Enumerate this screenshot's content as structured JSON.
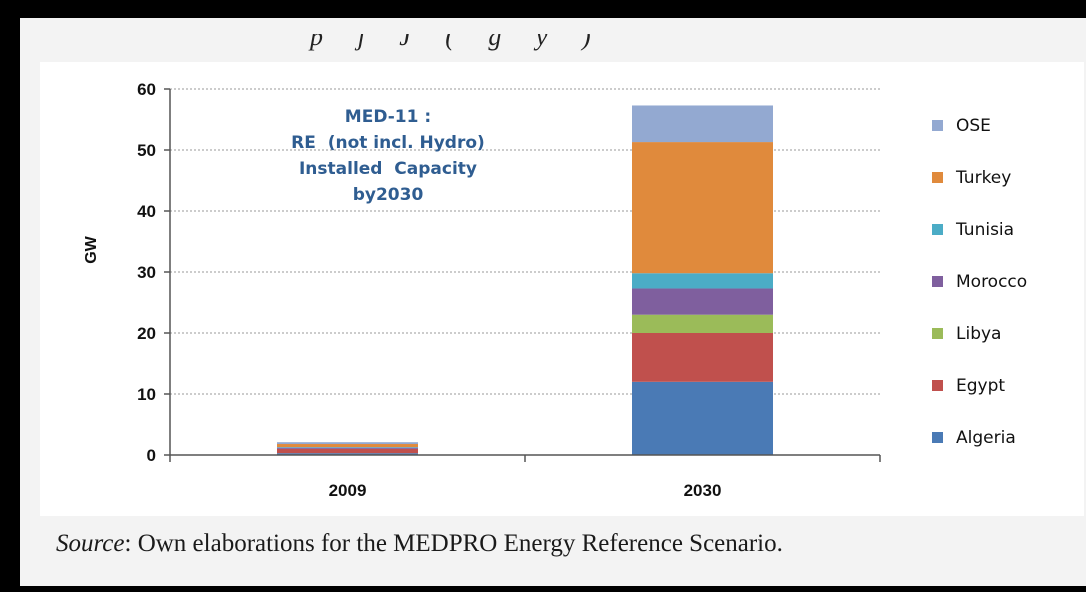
{
  "chart_data": {
    "type": "bar",
    "stacked": true,
    "title": "",
    "xlabel": "",
    "ylabel": "GW",
    "ylim": [
      0,
      60
    ],
    "yticks": [
      0,
      10,
      20,
      30,
      40,
      50,
      60
    ],
    "categories": [
      "2009",
      "2030"
    ],
    "series": [
      {
        "name": "Algeria",
        "color": "#4a7ab5",
        "values": [
          0.3,
          12
        ]
      },
      {
        "name": "Egypt",
        "color": "#c0504d",
        "values": [
          0.7,
          8
        ]
      },
      {
        "name": "Libya",
        "color": "#9bbb59",
        "values": [
          0,
          3
        ]
      },
      {
        "name": "Morocco",
        "color": "#7f5f9e",
        "values": [
          0.2,
          4.3
        ]
      },
      {
        "name": "Tunisia",
        "color": "#4bacc6",
        "values": [
          0.1,
          2.5
        ]
      },
      {
        "name": "Turkey",
        "color": "#e08a3c",
        "values": [
          0.5,
          21.5
        ]
      },
      {
        "name": "OSE",
        "color": "#93a9d1",
        "values": [
          0.3,
          6
        ]
      }
    ],
    "grid": true,
    "legend_position": "right",
    "annotation": [
      "MED-11 :",
      "RE  (not incl. Hydro)",
      "Installed  Capacity",
      "by2030"
    ]
  },
  "source": {
    "label": "Source",
    "text": ": Own elaborations for the MEDPRO Energy Reference Scenario."
  }
}
